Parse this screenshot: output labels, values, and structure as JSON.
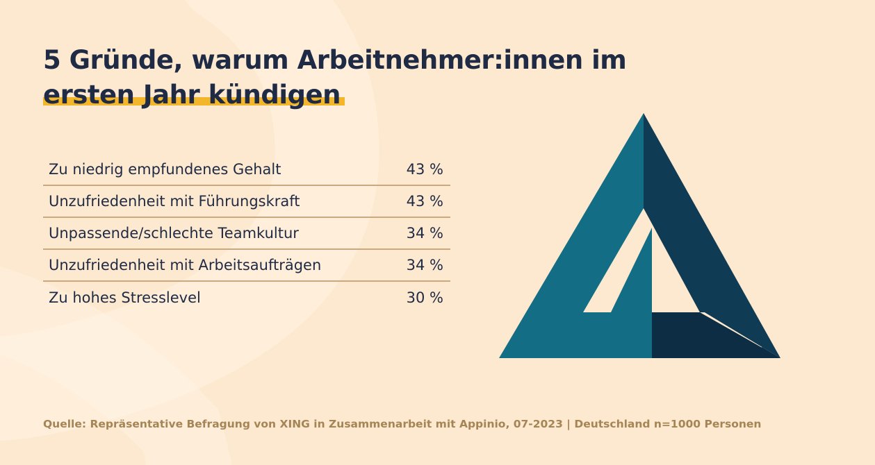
{
  "header": {
    "title_line1": "5 Gründe, warum Arbeitnehmer:innen im",
    "title_line2": "ersten Jahr kündigen"
  },
  "chart_data": {
    "type": "table",
    "categories": [
      "Zu niedrig empfundenes Gehalt",
      "Unzufriedenheit mit Führungskraft",
      "Unpassende/schlechte Teamkultur",
      "Unzufriedenheit mit Arbeitsaufträgen",
      "Zu hohes Stresslevel"
    ],
    "values": [
      43,
      43,
      34,
      34,
      30
    ],
    "value_labels": [
      "43 %",
      "43 %",
      "34 %",
      "34 %",
      "30 %"
    ],
    "unit": "%"
  },
  "colors": {
    "background": "#fde9cf",
    "title": "#1f2a44",
    "highlight": "#f3b62a",
    "logo_teal": "#136d85",
    "logo_navy": "#0f3b54",
    "logo_dark": "#0c2d44",
    "source_text": "#a58556"
  },
  "footer": {
    "source": "Quelle: Repräsentative Befragung von XING in Zusammenarbeit mit Appinio, 07-2023 | Deutschland n=1000 Personen"
  }
}
